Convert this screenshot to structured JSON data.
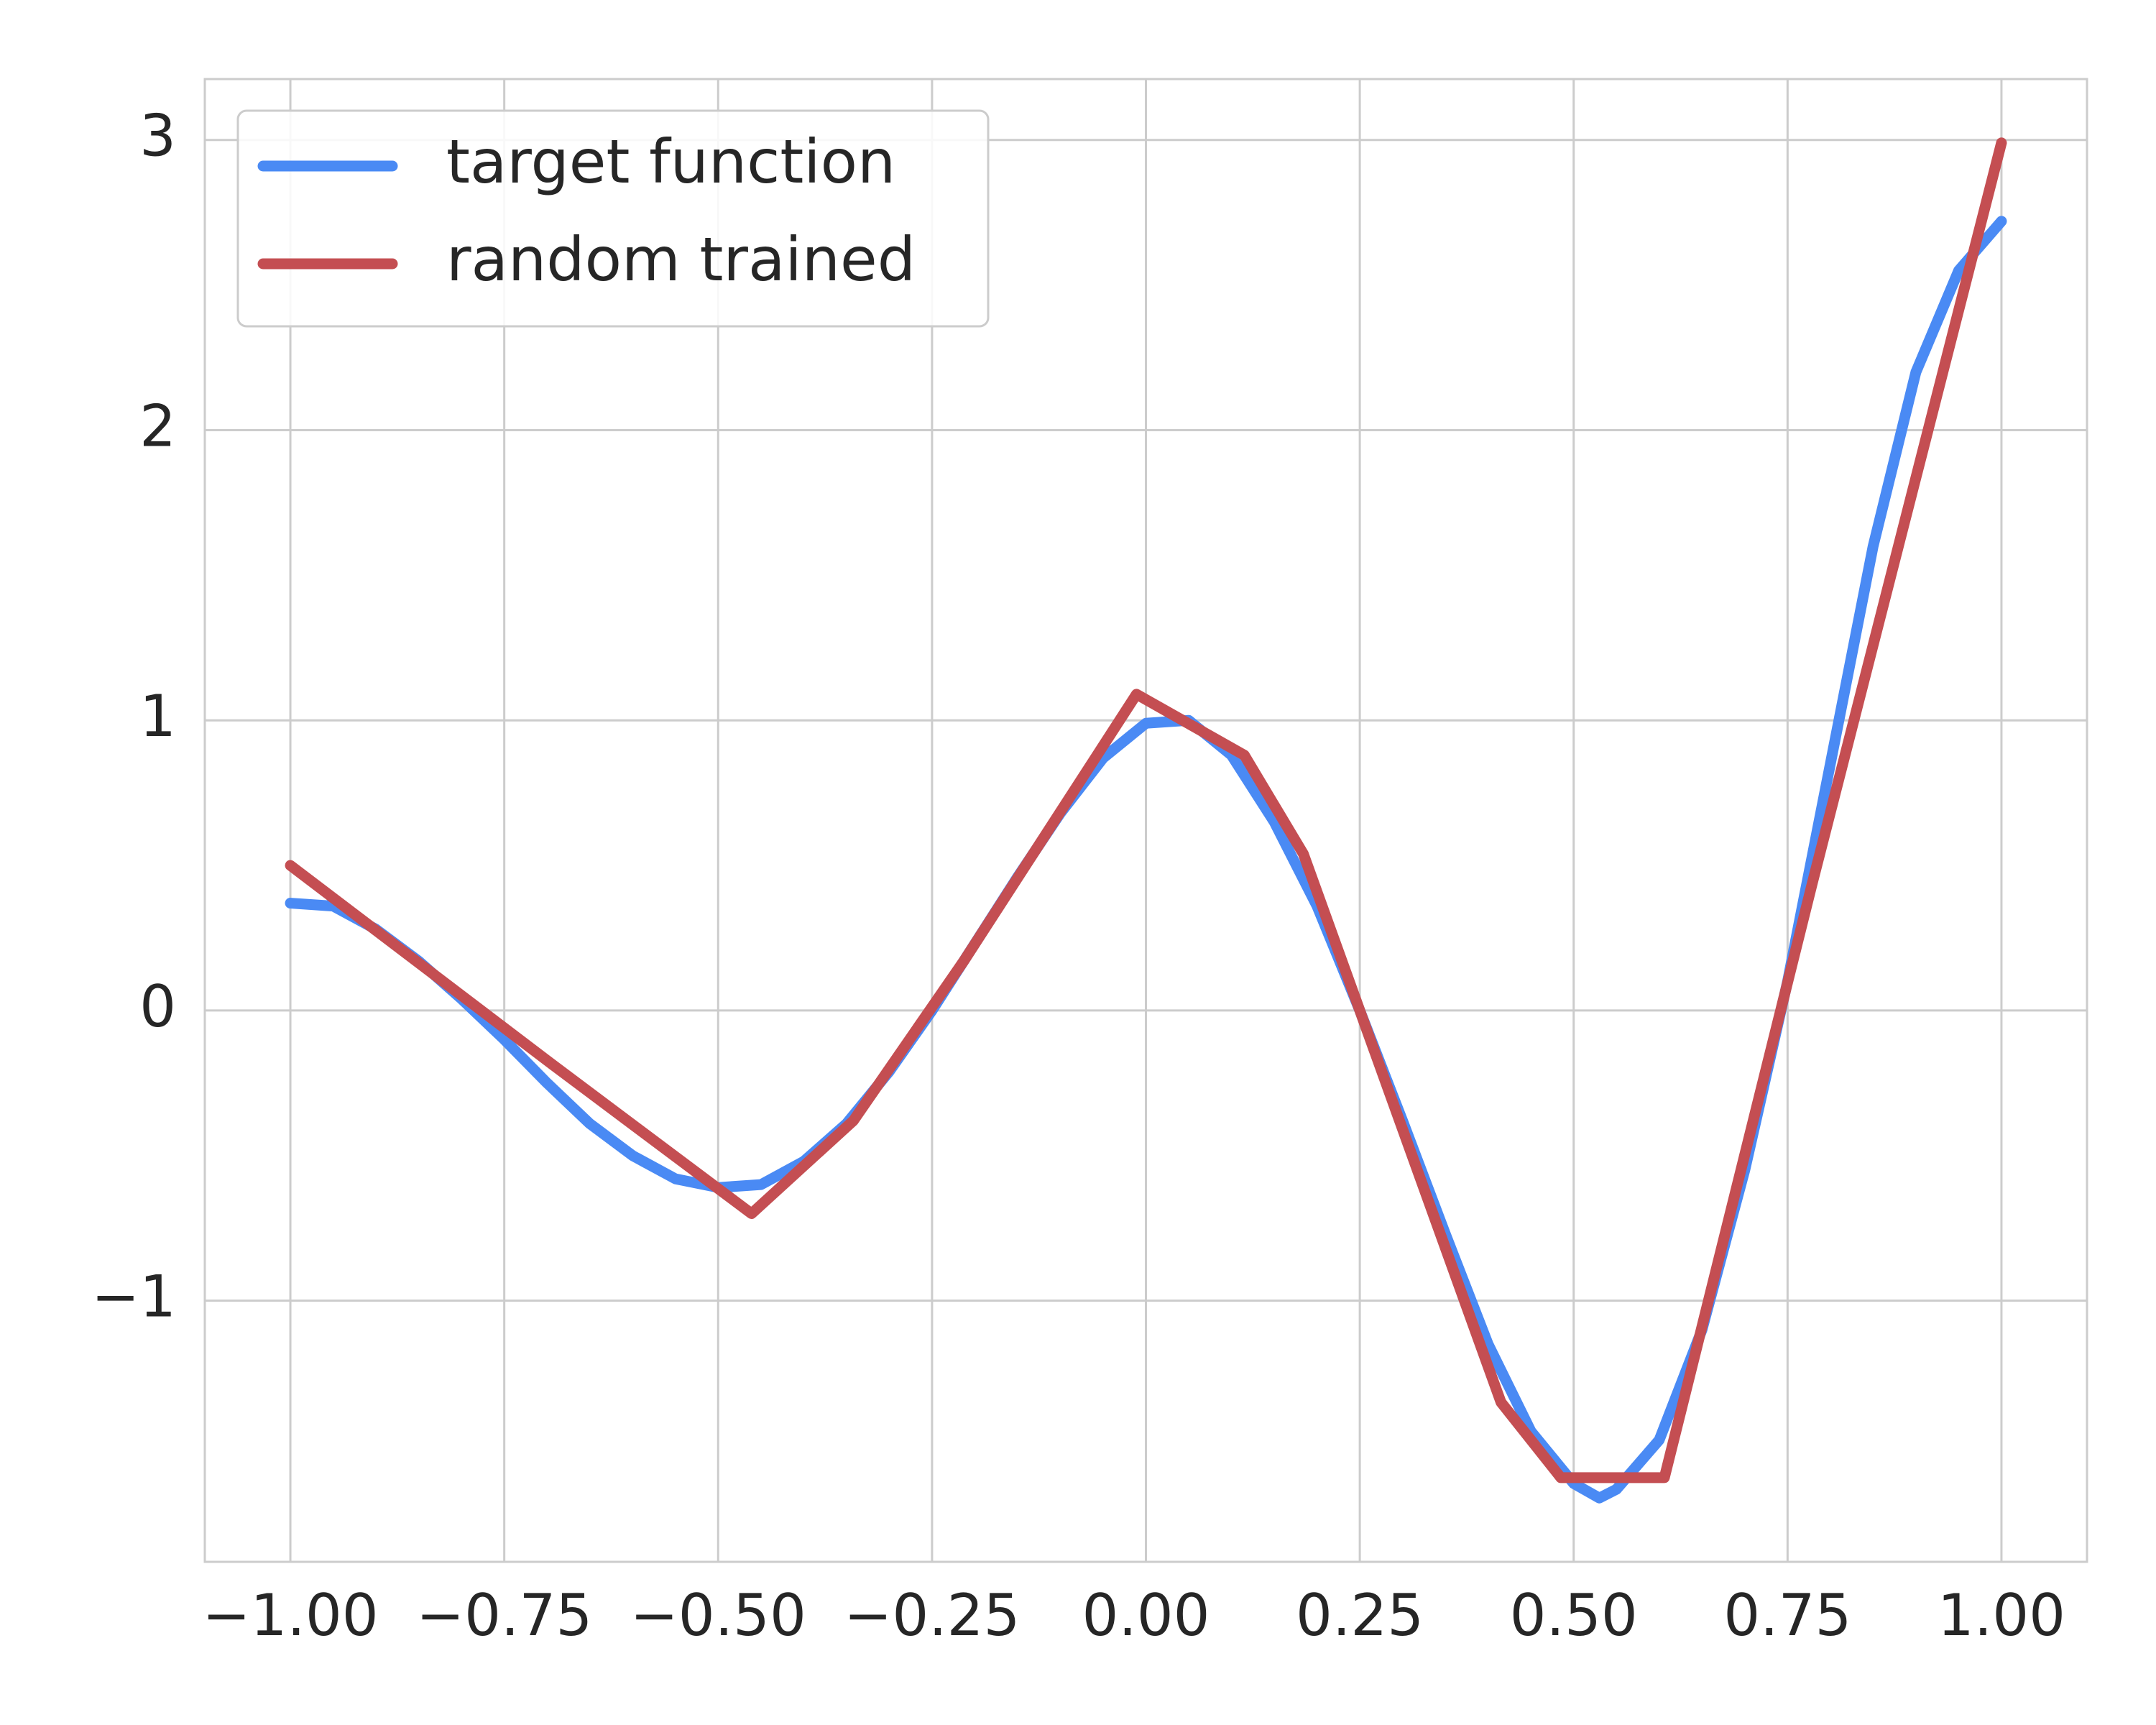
{
  "chart_data": {
    "type": "line",
    "series": [
      {
        "name": "target function",
        "color": "#4a8af4",
        "x": [
          -1,
          -0.95,
          -0.9,
          -0.85,
          -0.8,
          -0.75,
          -0.7,
          -0.65,
          -0.6,
          -0.55,
          -0.5,
          -0.45,
          -0.4,
          -0.35,
          -0.3,
          -0.25,
          -0.2,
          -0.15,
          -0.1,
          -0.05,
          0,
          0.05,
          0.1,
          0.15,
          0.2,
          0.25,
          0.3,
          0.35,
          0.4,
          0.45,
          0.5,
          0.53,
          0.55,
          0.6,
          0.65,
          0.7,
          0.75,
          0.8,
          0.85,
          0.9,
          0.95,
          1
        ],
        "values": [
          0.37,
          0.36,
          0.28,
          0.17,
          0.04,
          -0.1,
          -0.25,
          -0.39,
          -0.5,
          -0.58,
          -0.61,
          -0.6,
          -0.52,
          -0.39,
          -0.21,
          0.0,
          0.23,
          0.46,
          0.68,
          0.87,
          0.99,
          1.0,
          0.88,
          0.65,
          0.36,
          0.0,
          -0.38,
          -0.77,
          -1.15,
          -1.45,
          -1.63,
          -1.68,
          -1.65,
          -1.48,
          -1.1,
          -0.55,
          0.1,
          0.85,
          1.6,
          2.2,
          2.55,
          2.72
        ]
      },
      {
        "name": "random trained",
        "color": "#c44e52",
        "x": [
          -1,
          -0.692,
          -0.461,
          -0.342,
          -0.213,
          -0.011,
          0.115,
          0.184,
          0.415,
          0.485,
          0.606,
          0.779,
          1
        ],
        "values": [
          0.5,
          -0.19,
          -0.7,
          -0.38,
          0.17,
          1.09,
          0.88,
          0.54,
          -1.35,
          -1.61,
          -1.61,
          0.44,
          2.99
        ]
      }
    ],
    "xlim": [
      -1.1,
      1.1
    ],
    "xticks": [
      {
        "value": -1,
        "label": "−1.00"
      },
      {
        "value": -0.75,
        "label": "−0.75"
      },
      {
        "value": -0.5,
        "label": "−0.50"
      },
      {
        "value": -0.25,
        "label": "−0.25"
      },
      {
        "value": 0,
        "label": "0.00"
      },
      {
        "value": 0.25,
        "label": "0.25"
      },
      {
        "value": 0.5,
        "label": "0.50"
      },
      {
        "value": 0.75,
        "label": "0.75"
      },
      {
        "value": 1,
        "label": "1.00"
      }
    ],
    "ylim": [
      -1.9,
      3.21
    ],
    "yticks": [
      {
        "value": -1,
        "label": "−1"
      },
      0,
      1,
      2,
      3
    ],
    "grid": true,
    "legend": "upper left"
  }
}
